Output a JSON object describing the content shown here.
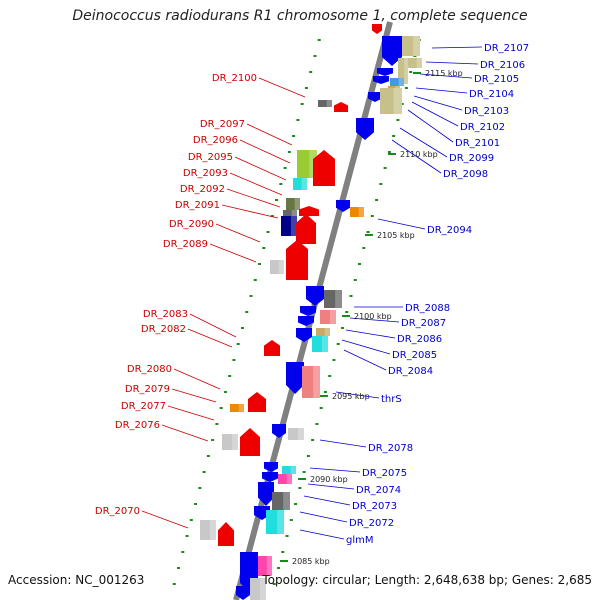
{
  "title": "Deinococcus radiodurans R1 chromosome 1, complete sequence",
  "footer": {
    "accession": "Accession: NC_001263",
    "topology": "Topology: circular; Length: 2,648,638 bp; Genes: 2,685"
  },
  "colors": {
    "backbone": "#808080",
    "left_label": "#cc0000",
    "right_label": "#0000cc",
    "tick": "#1a8a1a",
    "red": "#ee0000",
    "blue": "#0000ee",
    "olive": "#c8c08a",
    "cyan": "#22dddd",
    "gray": "#c8c8c8",
    "dark_gray": "#666666",
    "salmon": "#f08080",
    "navy": "#000088",
    "orange": "#ee8800",
    "green": "#99cc33",
    "dark_olive": "#667744",
    "pink": "#ff44aa",
    "steel_blue": "#4499dd",
    "tan": "#c8aa66"
  },
  "kbp_marks": [
    "2115 kbp",
    "2110 kbp",
    "2105 kbp",
    "2100 kbp",
    "2095 kbp",
    "2090 kbp",
    "2085 kbp"
  ],
  "left_genes": [
    "DR_2100",
    "DR_2097",
    "DR_2096",
    "DR_2095",
    "DR_2093",
    "DR_2092",
    "DR_2091",
    "DR_2090",
    "DR_2089",
    "DR_2083",
    "DR_2082",
    "DR_2080",
    "DR_2079",
    "DR_2077",
    "DR_2076",
    "DR_2070"
  ],
  "right_genes": [
    "DR_2107",
    "DR_2106",
    "DR_2105",
    "DR_2104",
    "DR_2103",
    "DR_2102",
    "DR_2101",
    "DR_2099",
    "DR_2098",
    "DR_2094",
    "DR_2088",
    "DR_2087",
    "DR_2086",
    "DR_2085",
    "DR_2084",
    "thrS",
    "DR_2078",
    "DR_2075",
    "DR_2074",
    "DR_2073",
    "DR_2072",
    "glmM"
  ]
}
